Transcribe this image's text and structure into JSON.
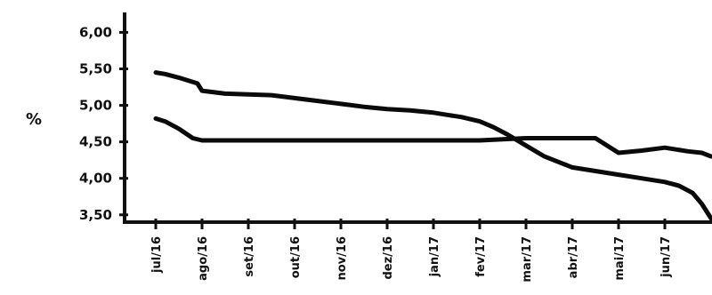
{
  "chart_data": {
    "type": "line",
    "ylabel": "%",
    "ylim": [
      3.4,
      6.2
    ],
    "yticks": [
      3.5,
      4.0,
      4.5,
      5.0,
      5.5,
      6.0
    ],
    "ytick_labels": [
      "3,50",
      "4,00",
      "4,50",
      "5,00",
      "5,50",
      "6,00"
    ],
    "categories": [
      "jul/16",
      "ago/16",
      "set/16",
      "out/16",
      "nov/16",
      "dez/16",
      "jan/17",
      "fev/17",
      "mar/17",
      "abr/17",
      "mai/17",
      "jun/17"
    ],
    "x_domain": [
      0,
      12.2
    ],
    "grid": false,
    "series": [
      {
        "x": [
          0.0,
          0.2,
          0.5,
          0.9,
          1.0,
          1.5,
          2.0,
          2.5,
          3.0,
          3.5,
          4.0,
          4.5,
          5.0,
          5.5,
          6.0,
          6.3,
          6.6,
          7.0,
          7.3,
          7.6,
          8.0,
          8.4,
          8.8,
          9.0,
          9.5,
          10.0,
          10.5,
          11.0,
          11.3,
          11.6,
          11.8,
          12.0
        ],
        "values": [
          5.45,
          5.43,
          5.38,
          5.3,
          5.2,
          5.16,
          5.15,
          5.14,
          5.1,
          5.06,
          5.02,
          4.98,
          4.95,
          4.93,
          4.9,
          4.87,
          4.84,
          4.78,
          4.7,
          4.6,
          4.45,
          4.3,
          4.2,
          4.15,
          4.1,
          4.05,
          4.0,
          3.95,
          3.9,
          3.8,
          3.65,
          3.45
        ]
      },
      {
        "x": [
          0.0,
          0.2,
          0.5,
          0.8,
          1.0,
          2.0,
          3.0,
          4.0,
          5.0,
          6.0,
          7.0,
          8.0,
          9.0,
          9.5,
          10.0,
          10.5,
          11.0,
          11.5,
          11.8,
          12.0
        ],
        "values": [
          4.82,
          4.78,
          4.68,
          4.55,
          4.52,
          4.52,
          4.52,
          4.52,
          4.52,
          4.52,
          4.52,
          4.55,
          4.55,
          4.55,
          4.35,
          4.38,
          4.42,
          4.37,
          4.35,
          4.3
        ]
      }
    ]
  }
}
